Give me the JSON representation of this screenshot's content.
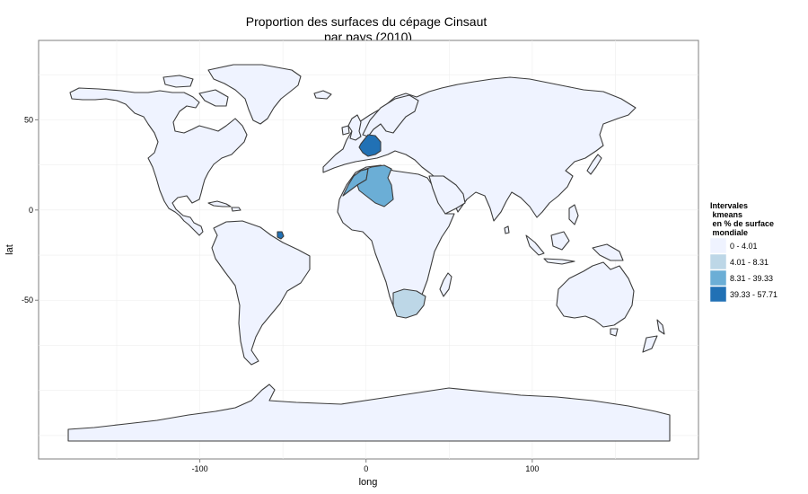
{
  "map": {
    "title_line1": "Proportion des surfaces du cépage Cinsaut",
    "title_line2": "par pays (2010)",
    "xlabel": "long",
    "ylabel": "lat",
    "xlim": [
      -197,
      200
    ],
    "ylim": [
      -138,
      94
    ],
    "x_ticks": [
      {
        "value": -100,
        "label": "-100"
      },
      {
        "value": 0,
        "label": "0"
      },
      {
        "value": 100,
        "label": "100"
      }
    ],
    "y_ticks": [
      {
        "value": 50,
        "label": "50"
      },
      {
        "value": 0,
        "label": "0"
      },
      {
        "value": -50,
        "label": "-50"
      }
    ],
    "grid": true,
    "legend": {
      "position": "right",
      "title_lines": [
        "Intervales",
        " kmeans",
        " en % de surface",
        " mondiale"
      ],
      "items": [
        {
          "label": "0 - 4.01",
          "color": "#eff3ff"
        },
        {
          "label": "4.01 - 8.31",
          "color": "#bdd7e7"
        },
        {
          "label": "8.31 - 39.33",
          "color": "#6baed6"
        },
        {
          "label": "39.33 - 57.71",
          "color": "#2171b5"
        }
      ]
    },
    "highlighted_countries": [
      {
        "name": "France",
        "class": "39.33 - 57.71"
      },
      {
        "name": "Morocco",
        "class": "8.31 - 39.33"
      },
      {
        "name": "Algeria",
        "class": "8.31 - 39.33"
      },
      {
        "name": "South Africa",
        "class": "4.01 - 8.31"
      },
      {
        "name": "French Guiana",
        "class": "39.33 - 57.71"
      }
    ]
  },
  "chart_data": {
    "type": "choropleth",
    "title": "Proportion des surfaces du cépage Cinsaut par pays (2010)",
    "xlabel": "long",
    "ylabel": "lat",
    "classes": [
      "0 - 4.01",
      "4.01 - 8.31",
      "8.31 - 39.33",
      "39.33 - 57.71"
    ],
    "colors": [
      "#eff3ff",
      "#bdd7e7",
      "#6baed6",
      "#2171b5"
    ],
    "countries": [
      {
        "name": "France",
        "class": "39.33 - 57.71"
      },
      {
        "name": "Morocco",
        "class": "8.31 - 39.33"
      },
      {
        "name": "Algeria",
        "class": "8.31 - 39.33"
      },
      {
        "name": "South Africa",
        "class": "4.01 - 8.31"
      },
      {
        "name": "French Guiana",
        "class": "39.33 - 57.71"
      },
      {
        "name": "All other countries",
        "class": "0 - 4.01"
      }
    ]
  }
}
